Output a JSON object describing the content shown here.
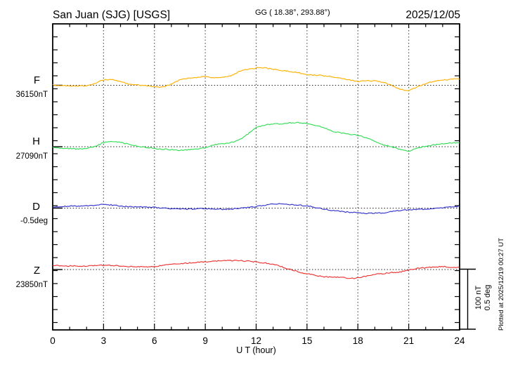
{
  "header": {
    "title": "San Juan (SJG)  [USGS]",
    "coords": "GG ( 18.38°, 293.88°)",
    "date": "2025/12/05"
  },
  "chart_data": {
    "type": "line",
    "title": "San Juan (SJG)  [USGS]",
    "subtitle": "GG ( 18.38°, 293.88°)",
    "date": "2025/12/05",
    "xlabel": "U T (hour)",
    "x_range": [
      0,
      24
    ],
    "x_major_ticks": [
      0,
      3,
      6,
      9,
      12,
      15,
      18,
      21,
      24
    ],
    "x_minor_step_hours": 1,
    "grid": "dotted vertical lines every 3 hours; dotted horizontal baseline per trace",
    "legend_position": "left margin",
    "sample_interval_hours": 0.5,
    "scale_bar": {
      "lines": [
        "100 nT",
        "0.5 deg"
      ],
      "nT": 100,
      "deg": 0.5
    },
    "plotted_at": "Plotted at 2025/12/19 00:27 UT",
    "series": [
      {
        "name": "F",
        "unit": "nT",
        "baseline": 36150,
        "baseline_label": "36150nT",
        "color": "#FFB000",
        "offsets": [
          1,
          -1,
          -1,
          -1,
          -1,
          3,
          9,
          10,
          6,
          2,
          1,
          -1,
          -2,
          -3,
          2,
          9,
          12,
          13,
          15,
          12,
          13,
          16,
          23,
          27,
          29,
          29,
          27,
          25,
          23,
          21,
          18,
          17,
          16,
          14,
          12,
          9,
          6,
          8,
          7,
          5,
          0,
          -7,
          -9,
          -3,
          3,
          7,
          9,
          10,
          11
        ]
      },
      {
        "name": "H",
        "unit": "nT",
        "baseline": 27090,
        "baseline_label": "27090nT",
        "color": "#33DD55",
        "offsets": [
          -1,
          -2,
          -3,
          -4,
          -3,
          0,
          7,
          9,
          7,
          4,
          1,
          -1,
          -3,
          -4,
          -5,
          -6,
          -5,
          -4,
          -2,
          3,
          5,
          7,
          11,
          21,
          32,
          36,
          38,
          38,
          40,
          40,
          39,
          36,
          32,
          26,
          23,
          21,
          19,
          15,
          9,
          3,
          0,
          -5,
          -8,
          -2,
          1,
          3,
          5,
          6,
          7
        ]
      },
      {
        "name": "D",
        "unit": "deg",
        "baseline": -0.5,
        "baseline_label": "-0.5deg",
        "color": "#3333CC",
        "offsets": [
          0.01,
          0.013,
          0.016,
          0.018,
          0.019,
          0.024,
          0.031,
          0.026,
          0.016,
          0.012,
          0.01,
          0.008,
          0.006,
          0.0,
          -0.004,
          -0.008,
          -0.008,
          -0.006,
          -0.004,
          -0.008,
          -0.01,
          -0.008,
          0.0,
          0.006,
          0.012,
          0.025,
          0.035,
          0.037,
          0.031,
          0.025,
          0.019,
          0.006,
          -0.008,
          -0.019,
          -0.028,
          -0.035,
          -0.039,
          -0.043,
          -0.043,
          -0.039,
          -0.028,
          -0.019,
          -0.014,
          -0.01,
          -0.008,
          -0.004,
          0.004,
          0.01,
          0.016
        ]
      },
      {
        "name": "Z",
        "unit": "nT",
        "baseline": 23850,
        "baseline_label": "23850nT",
        "color": "#EE3333",
        "offsets": [
          7,
          6,
          6,
          6,
          6,
          7,
          7,
          7,
          6,
          5,
          5,
          4,
          5,
          7,
          9,
          10,
          11,
          12,
          13,
          14,
          15,
          15,
          15,
          14,
          13,
          11,
          9,
          5,
          0,
          -4,
          -7,
          -10,
          -12,
          -13,
          -13,
          -15,
          -14,
          -11,
          -8,
          -7,
          -5,
          -4,
          -1,
          2,
          3,
          4,
          5,
          4,
          4
        ]
      }
    ]
  }
}
